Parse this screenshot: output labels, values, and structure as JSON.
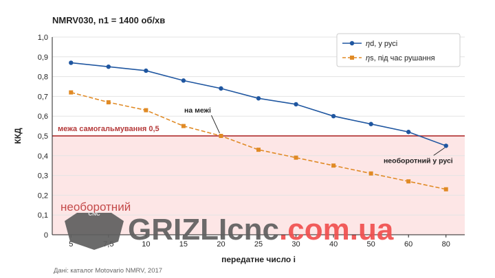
{
  "chart_data": {
    "type": "line",
    "title": "NMRV030, n1 = 1400 об/хв",
    "xlabel": "передатне число i",
    "ylabel": "ККД",
    "categories": [
      "5",
      "7,5",
      "10",
      "15",
      "20",
      "25",
      "30",
      "40",
      "50",
      "60",
      "80"
    ],
    "ylim": [
      0,
      1.0
    ],
    "yticks": [
      "0",
      "0,1",
      "0,2",
      "0,3",
      "0,4",
      "0,5",
      "0,6",
      "0,7",
      "0,8",
      "0,9",
      "1,0"
    ],
    "grid": true,
    "legend_position": "top-right",
    "series": [
      {
        "name": "ηd, у русі",
        "symbol": "η",
        "rest": "d, у русі",
        "color": "#1f56a0",
        "style": "solid",
        "marker": "circle",
        "values": [
          0.87,
          0.85,
          0.83,
          0.78,
          0.74,
          0.69,
          0.66,
          0.6,
          0.56,
          0.52,
          0.45
        ]
      },
      {
        "name": "ηs, під час рушання",
        "symbol": "η",
        "rest": "s, під час рушання",
        "color": "#e08a25",
        "style": "dashed",
        "marker": "square",
        "values": [
          0.72,
          0.67,
          0.63,
          0.55,
          0.5,
          0.43,
          0.39,
          0.35,
          0.31,
          0.27,
          0.23
        ]
      }
    ],
    "threshold": {
      "value": 0.5,
      "label": "межа самогальмування 0,5",
      "color": "#b53a3a"
    },
    "region": {
      "label": "необоротний",
      "fill": "#fde6e6"
    },
    "annotations": [
      {
        "text": "на межі",
        "series": 1,
        "index": 4
      },
      {
        "text": "необоротний у русі",
        "series": 0,
        "index": 10
      }
    ]
  },
  "source": "Дані: каталог Motovario NMRV, 2017",
  "watermark": {
    "badge": "CNC",
    "text_a": "GRIZLIcnc",
    "text_b": ".com.ua"
  }
}
